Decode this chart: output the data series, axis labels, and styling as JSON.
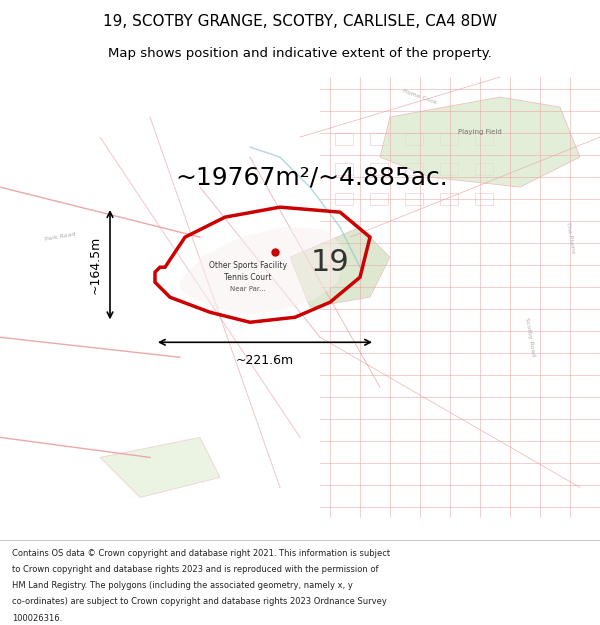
{
  "title_line1": "19, SCOTBY GRANGE, SCOTBY, CARLISLE, CA4 8DW",
  "title_line2": "Map shows position and indicative extent of the property.",
  "area_text": "~19767m²/~4.885ac.",
  "label_number": "19",
  "dim_horizontal": "~221.6m",
  "dim_vertical": "~164.5m",
  "label_sports": "Other Sports Facility",
  "label_tennis": "Tennis Court",
  "label_nearpar": "Near Par...",
  "label_playing": "Playing Field",
  "footer_lines": [
    "Contains OS data © Crown copyright and database right 2021. This information is subject",
    "to Crown copyright and database rights 2023 and is reproduced with the permission of",
    "HM Land Registry. The polygons (including the associated geometry, namely x, y",
    "co-ordinates) are subject to Crown copyright and database rights 2023 Ordnance Survey",
    "100026316."
  ],
  "map_bg": "#faf0f0",
  "street_color": "#e8a0a0",
  "highlight_color": "#cc0000",
  "green_area": "#c8d8b0",
  "light_green": "#d8e8c8",
  "fig_width": 6.0,
  "fig_height": 6.25
}
